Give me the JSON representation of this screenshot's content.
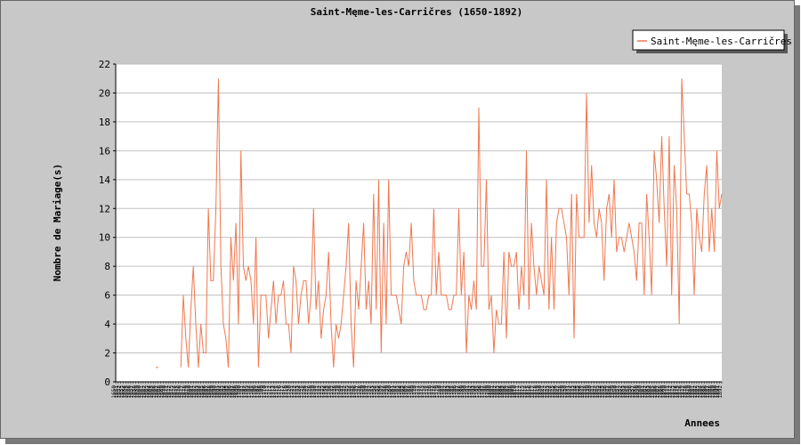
{
  "chart_data": {
    "type": "line",
    "title": "Saint-Męme-les-Carričres (1650-1892)",
    "xlabel": "Annees",
    "ylabel": "Nombre de Mariage(s)",
    "x_start": 1650,
    "x_end": 1892,
    "ylim": [
      0,
      22
    ],
    "yticks": [
      0,
      2,
      4,
      6,
      8,
      10,
      12,
      14,
      16,
      18,
      20,
      22
    ],
    "grid": true,
    "legend_position": "top-right",
    "series": [
      {
        "name": "Saint-Męme-les-Carričres",
        "color": "#f07850",
        "values": [
          null,
          null,
          null,
          null,
          null,
          null,
          null,
          null,
          null,
          null,
          null,
          null,
          null,
          null,
          null,
          null,
          1,
          1,
          null,
          null,
          null,
          null,
          null,
          null,
          null,
          null,
          1,
          6,
          3,
          1,
          5,
          8,
          4,
          1,
          4,
          2,
          2,
          12,
          7,
          7,
          12,
          21,
          8,
          4,
          3,
          1,
          10,
          7,
          11,
          4,
          16,
          8,
          7,
          8,
          7,
          4,
          10,
          1,
          6,
          6,
          6,
          3,
          5,
          7,
          4,
          6,
          6,
          7,
          4,
          4,
          2,
          8,
          7,
          4,
          6,
          7,
          7,
          4,
          6,
          12,
          5,
          7,
          3,
          5,
          6,
          9,
          4,
          1,
          4,
          3,
          4,
          6,
          8,
          11,
          4,
          1,
          7,
          5,
          8,
          11,
          5,
          7,
          4,
          13,
          5,
          14,
          2,
          11,
          4,
          14,
          6,
          6,
          6,
          5,
          4,
          8,
          9,
          8,
          11,
          7,
          6,
          6,
          6,
          5,
          5,
          6,
          6,
          12,
          6,
          9,
          6,
          6,
          6,
          5,
          5,
          6,
          6,
          12,
          6,
          9,
          2,
          6,
          5,
          7,
          5,
          19,
          8,
          8,
          14,
          5,
          6,
          2,
          5,
          4,
          4,
          9,
          3,
          9,
          8,
          8,
          9,
          5,
          8,
          6,
          16,
          5,
          11,
          8,
          6,
          8,
          7,
          6,
          14,
          5,
          10,
          5,
          11,
          12,
          12,
          11,
          10,
          6,
          13,
          3,
          13,
          10,
          10,
          10,
          20,
          11,
          15,
          11,
          10,
          12,
          11,
          7,
          12,
          13,
          10,
          14,
          9,
          10,
          10,
          9,
          10,
          11,
          10,
          9,
          7,
          11,
          11,
          6,
          13,
          10,
          6,
          16,
          14,
          11,
          17,
          12,
          8,
          17,
          6,
          15,
          12,
          4,
          21,
          17,
          13,
          13,
          11,
          6,
          12,
          10,
          9,
          13,
          15,
          9,
          12,
          9,
          16,
          12,
          13
        ]
      }
    ]
  }
}
